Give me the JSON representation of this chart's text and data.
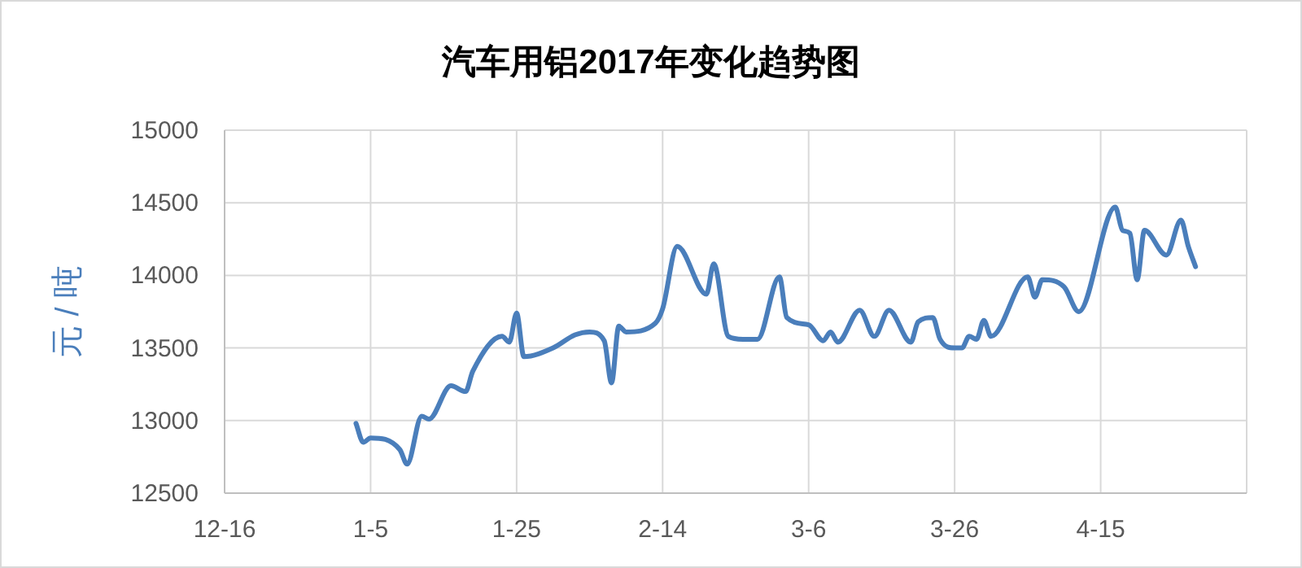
{
  "chart_data": {
    "type": "line",
    "title": "汽车用铝2017年变化趋势图",
    "ylabel": "元 / 吨",
    "x": [
      "2017-01-03",
      "2017-01-04",
      "2017-01-05",
      "2017-01-09",
      "2017-01-10",
      "2017-01-12",
      "2017-01-13",
      "2017-01-16",
      "2017-01-18",
      "2017-01-19",
      "2017-01-23",
      "2017-01-24",
      "2017-01-25",
      "2017-01-26",
      "2017-01-30",
      "2017-02-02",
      "2017-02-04",
      "2017-02-06",
      "2017-02-07",
      "2017-02-08",
      "2017-02-09",
      "2017-02-13",
      "2017-02-14",
      "2017-02-16",
      "2017-02-20",
      "2017-02-21",
      "2017-02-23",
      "2017-02-25",
      "2017-02-27",
      "2017-03-02",
      "2017-03-03",
      "2017-03-06",
      "2017-03-08",
      "2017-03-09",
      "2017-03-10",
      "2017-03-13",
      "2017-03-15",
      "2017-03-17",
      "2017-03-20",
      "2017-03-21",
      "2017-03-23",
      "2017-03-24",
      "2017-03-26",
      "2017-03-27",
      "2017-03-28",
      "2017-03-29",
      "2017-03-30",
      "2017-03-31",
      "2017-04-05",
      "2017-04-06",
      "2017-04-07",
      "2017-04-10",
      "2017-04-12",
      "2017-04-17",
      "2017-04-18",
      "2017-04-19",
      "2017-04-20",
      "2017-04-21",
      "2017-04-24",
      "2017-04-26",
      "2017-04-27",
      "2017-04-28"
    ],
    "series": [
      {
        "color": "#4a7ebb",
        "values": [
          12980,
          12850,
          12880,
          12800,
          12700,
          13030,
          13010,
          13240,
          13200,
          13340,
          13580,
          13540,
          13740,
          13440,
          13500,
          13590,
          13610,
          13550,
          13260,
          13650,
          13610,
          13670,
          13770,
          14200,
          13870,
          14080,
          13580,
          13560,
          13560,
          13990,
          13710,
          13660,
          13550,
          13610,
          13540,
          13760,
          13580,
          13760,
          13540,
          13680,
          13710,
          13560,
          13500,
          13500,
          13580,
          13560,
          13690,
          13580,
          13990,
          13850,
          13970,
          13920,
          13750,
          14470,
          14310,
          14290,
          13970,
          14310,
          14140,
          14380,
          14200,
          14060
        ]
      }
    ],
    "xlim": [
      "2016-12-16",
      "2017-05-05"
    ],
    "xticks": [
      {
        "value": "2016-12-16",
        "label": "12-16"
      },
      {
        "value": "2017-01-05",
        "label": "1-5"
      },
      {
        "value": "2017-01-25",
        "label": "1-25"
      },
      {
        "value": "2017-02-14",
        "label": "2-14"
      },
      {
        "value": "2017-03-06",
        "label": "3-6"
      },
      {
        "value": "2017-03-26",
        "label": "3-26"
      },
      {
        "value": "2017-04-15",
        "label": "4-15"
      },
      {
        "value": "2017-05-05",
        "label": null
      }
    ],
    "ylim": [
      12500,
      15000
    ],
    "yticks": [
      12500,
      13000,
      13500,
      14000,
      14500,
      15000
    ],
    "grid": true,
    "line_style": "solid",
    "marker": "none"
  }
}
